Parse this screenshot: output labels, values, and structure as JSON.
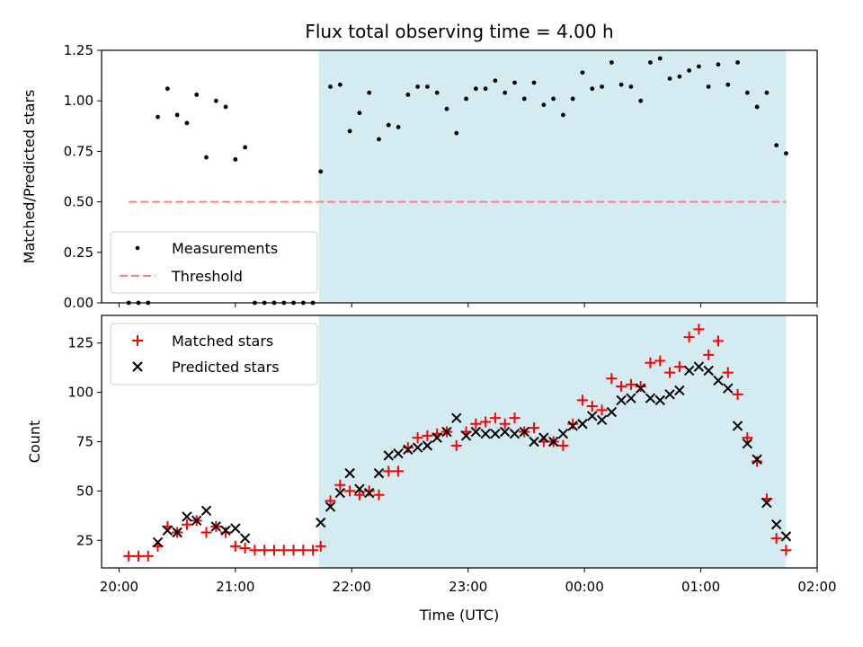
{
  "chart_data": [
    {
      "type": "scatter",
      "title": "Flux total observing time = 4.00 h",
      "xlabel": "",
      "ylabel": "Matched/Predicted stars",
      "ylim": [
        0,
        1.25
      ],
      "yticks": [
        "0.00",
        "0.25",
        "0.50",
        "0.75",
        "1.00",
        "1.25"
      ],
      "xlim_hours": [
        19.85,
        26.0
      ],
      "shaded_x_range": [
        "21:43",
        "25:44"
      ],
      "shade_color": "#add8e6",
      "legend_position": "lower left",
      "series": [
        {
          "name": "Measurements",
          "marker": "dot",
          "color": "#000000",
          "x": [
            "20:05",
            "20:10",
            "20:15",
            "20:20",
            "20:25",
            "20:30",
            "20:35",
            "20:40",
            "20:45",
            "20:50",
            "20:55",
            "21:00",
            "21:05",
            "21:10",
            "21:15",
            "21:20",
            "21:25",
            "21:30",
            "21:35",
            "21:40",
            "21:44",
            "21:49",
            "21:54",
            "21:59",
            "22:04",
            "22:09",
            "22:14",
            "22:19",
            "22:24",
            "22:29",
            "22:34",
            "22:39",
            "22:44",
            "22:49",
            "22:54",
            "22:59",
            "23:04",
            "23:09",
            "23:14",
            "23:19",
            "23:24",
            "23:29",
            "23:34",
            "23:39",
            "23:44",
            "23:49",
            "23:54",
            "23:59",
            "00:04",
            "00:09",
            "00:14",
            "00:19",
            "00:24",
            "00:29",
            "00:34",
            "00:39",
            "00:44",
            "00:49",
            "00:54",
            "00:59",
            "01:04",
            "01:09",
            "01:14",
            "01:19",
            "01:24",
            "01:29",
            "01:34",
            "01:39",
            "01:44"
          ],
          "y": [
            0.0,
            0.0,
            0.0,
            0.92,
            1.06,
            0.93,
            0.89,
            1.03,
            0.72,
            1.0,
            0.97,
            0.71,
            0.77,
            0.0,
            0.0,
            0.0,
            0.0,
            0.0,
            0.0,
            0.0,
            0.65,
            1.07,
            1.08,
            0.85,
            0.94,
            1.04,
            0.81,
            0.88,
            0.87,
            1.03,
            1.07,
            1.07,
            1.04,
            0.96,
            0.84,
            1.01,
            1.06,
            1.06,
            1.1,
            1.04,
            1.09,
            1.01,
            1.09,
            0.98,
            1.01,
            0.93,
            1.01,
            1.14,
            1.06,
            1.07,
            1.19,
            1.08,
            1.07,
            1.0,
            1.19,
            1.21,
            1.11,
            1.12,
            1.15,
            1.17,
            1.07,
            1.18,
            1.08,
            1.19,
            1.04,
            0.97,
            1.04,
            0.78,
            0.74
          ]
        },
        {
          "name": "Threshold",
          "marker": "dashed-line",
          "color": "#ff7f7f",
          "x": [
            "20:05",
            "01:44"
          ],
          "y": [
            0.5,
            0.5
          ]
        }
      ]
    },
    {
      "type": "scatter",
      "title": "",
      "xlabel": "Time (UTC)",
      "ylabel": "Count",
      "ylim": [
        11,
        139
      ],
      "yticks": [
        "25",
        "50",
        "75",
        "100",
        "125"
      ],
      "xticks": [
        "20:00",
        "21:00",
        "22:00",
        "23:00",
        "00:00",
        "01:00",
        "02:00"
      ],
      "xlim_hours": [
        19.85,
        26.0
      ],
      "shaded_x_range": [
        "21:43",
        "25:44"
      ],
      "shade_color": "#add8e6",
      "legend_position": "upper left",
      "series": [
        {
          "name": "Matched stars",
          "marker": "plus",
          "color": "#ff0000",
          "x": [
            "20:05",
            "20:10",
            "20:15",
            "20:20",
            "20:25",
            "20:30",
            "20:35",
            "20:40",
            "20:45",
            "20:50",
            "20:55",
            "21:00",
            "21:05",
            "21:10",
            "21:15",
            "21:20",
            "21:25",
            "21:30",
            "21:35",
            "21:40",
            "21:44",
            "21:49",
            "21:54",
            "21:59",
            "22:04",
            "22:09",
            "22:14",
            "22:19",
            "22:24",
            "22:29",
            "22:34",
            "22:39",
            "22:44",
            "22:49",
            "22:54",
            "22:59",
            "23:04",
            "23:09",
            "23:14",
            "23:19",
            "23:24",
            "23:29",
            "23:34",
            "23:39",
            "23:44",
            "23:49",
            "23:54",
            "23:59",
            "00:04",
            "00:09",
            "00:14",
            "00:19",
            "00:24",
            "00:29",
            "00:34",
            "00:39",
            "00:44",
            "00:49",
            "00:54",
            "00:59",
            "01:04",
            "01:09",
            "01:14",
            "01:19",
            "01:24",
            "01:29",
            "01:34",
            "01:39",
            "01:44"
          ],
          "y": [
            17,
            17,
            17,
            22,
            32,
            29,
            33,
            35,
            29,
            32,
            29,
            22,
            21,
            20,
            20,
            20,
            20,
            20,
            20,
            20,
            22,
            45,
            53,
            50,
            48,
            50,
            48,
            60,
            60,
            72,
            77,
            78,
            79,
            80,
            73,
            80,
            84,
            85,
            87,
            84,
            87,
            80,
            82,
            75,
            75,
            73,
            84,
            96,
            93,
            91,
            107,
            103,
            104,
            103,
            115,
            116,
            110,
            113,
            128,
            132,
            119,
            126,
            110,
            99,
            77,
            65,
            46,
            26,
            20
          ]
        },
        {
          "name": "Predicted stars",
          "marker": "x",
          "color": "#000000",
          "x": [
            "20:20",
            "20:25",
            "20:30",
            "20:35",
            "20:40",
            "20:45",
            "20:50",
            "20:55",
            "21:00",
            "21:05",
            "21:44",
            "21:49",
            "21:54",
            "21:59",
            "22:04",
            "22:09",
            "22:14",
            "22:19",
            "22:24",
            "22:29",
            "22:34",
            "22:39",
            "22:44",
            "22:49",
            "22:54",
            "22:59",
            "23:04",
            "23:09",
            "23:14",
            "23:19",
            "23:24",
            "23:29",
            "23:34",
            "23:39",
            "23:44",
            "23:49",
            "23:54",
            "23:59",
            "00:04",
            "00:09",
            "00:14",
            "00:19",
            "00:24",
            "00:29",
            "00:34",
            "00:39",
            "00:44",
            "00:49",
            "00:54",
            "00:59",
            "01:04",
            "01:09",
            "01:14",
            "01:19",
            "01:24",
            "01:29",
            "01:34",
            "01:39",
            "01:44"
          ],
          "y": [
            24,
            30,
            29,
            37,
            35,
            40,
            32,
            30,
            31,
            26,
            34,
            42,
            49,
            59,
            51,
            49,
            59,
            68,
            69,
            71,
            72,
            73,
            77,
            80,
            87,
            78,
            80,
            79,
            79,
            80,
            79,
            80,
            75,
            77,
            75,
            79,
            83,
            84,
            88,
            86,
            90,
            96,
            97,
            102,
            97,
            96,
            99,
            101,
            111,
            113,
            111,
            106,
            102,
            83,
            74,
            66,
            44,
            33,
            27
          ]
        }
      ]
    }
  ]
}
